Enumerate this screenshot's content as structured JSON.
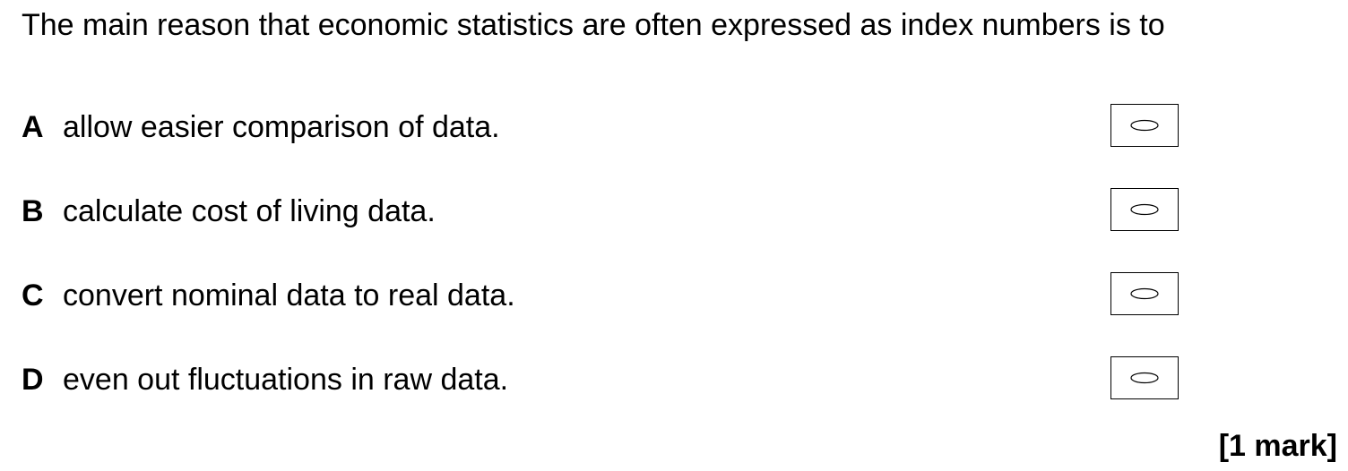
{
  "question": {
    "stem": "The main reason that economic statistics are often expressed as index numbers is to"
  },
  "options": [
    {
      "letter": "A",
      "text": "allow easier comparison of data."
    },
    {
      "letter": "B",
      "text": "calculate cost of living data."
    },
    {
      "letter": "C",
      "text": "convert nominal data to real data."
    },
    {
      "letter": "D",
      "text": "even out fluctuations in raw data."
    }
  ],
  "marks": {
    "label": "[1 mark]"
  },
  "icons": {
    "answer_bubble": "oval-bubble-icon"
  }
}
